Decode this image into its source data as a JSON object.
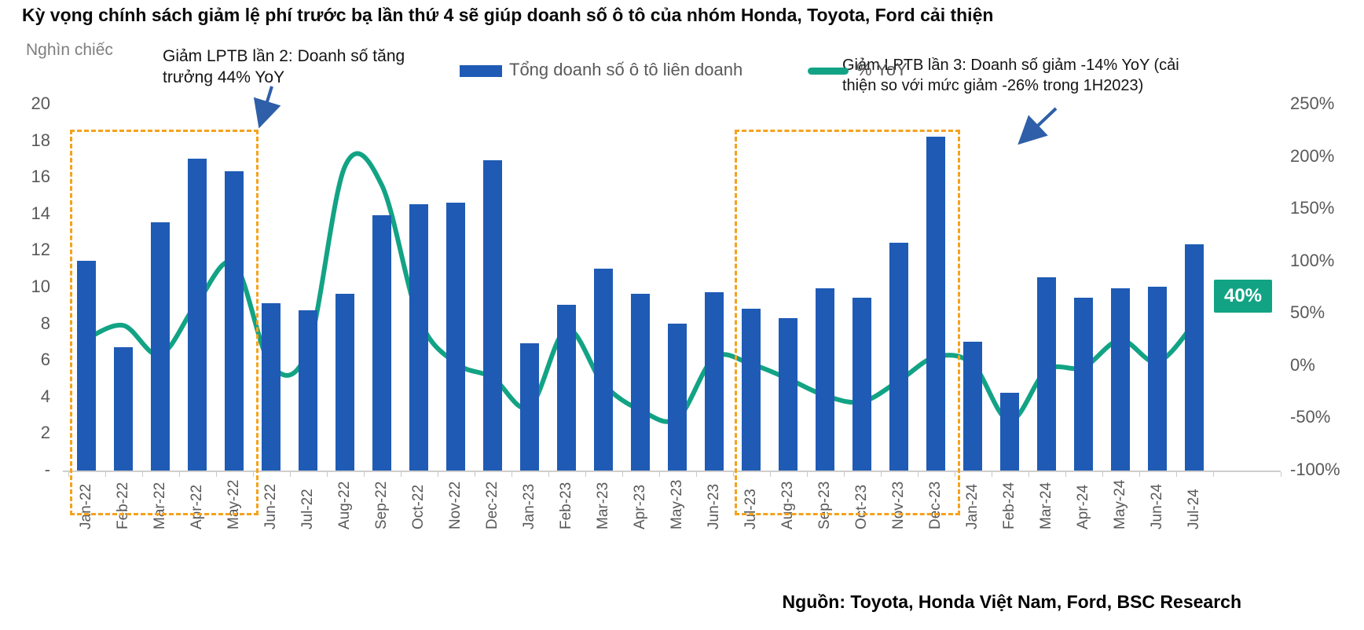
{
  "title": "Kỳ vọng chính sách giảm lệ phí trước bạ lần thứ 4 sẽ giúp doanh số ô tô của nhóm Honda, Toyota, Ford cải thiện",
  "axis_left_title": "Nghìn chiếc",
  "legend": {
    "bars_label": "Tổng doanh số ô tô liên doanh",
    "line_label": "% YoY"
  },
  "annotations": {
    "box1_label": "Giảm LPTB lần 2: Doanh số tăng trưởng 44% YoY",
    "box2_label": "Giảm LPTB lần 3: Doanh số giảm -14% YoY (cải thiện so với mức giảm -26% trong 1H2023)",
    "last_point_label": "40%"
  },
  "source": "Nguồn: Toyota, Honda Việt Nam, Ford, BSC Research",
  "colors": {
    "bar_blue": "#1f5bb5",
    "line_green": "#12a384",
    "badge_green": "#12a384",
    "box_orange": "#f5a21c",
    "arrow_blue": "#2e5fa8",
    "axis_text_gray": "#595959",
    "axis_line_gray": "#d0cece"
  },
  "chart_data": {
    "type": "bar",
    "subtype": "bar+line dual axis",
    "categories": [
      "Jan-22",
      "Feb-22",
      "Mar-22",
      "Apr-22",
      "May-22",
      "Jun-22",
      "Jul-22",
      "Aug-22",
      "Sep-22",
      "Oct-22",
      "Nov-22",
      "Dec-22",
      "Jan-23",
      "Feb-23",
      "Mar-23",
      "Apr-23",
      "May-23",
      "Jun-23",
      "Jul-23",
      "Aug-23",
      "Sep-23",
      "Oct-23",
      "Nov-23",
      "Dec-23",
      "Jan-24",
      "Feb-24",
      "Mar-24",
      "Apr-24",
      "May-24",
      "Jun-24",
      "Jul-24"
    ],
    "series": [
      {
        "name": "Tổng doanh số ô tô liên doanh",
        "type": "bar",
        "axis": "left",
        "unit": "nghìn chiếc",
        "values": [
          11.4,
          6.7,
          13.5,
          17.0,
          16.3,
          9.1,
          8.7,
          9.6,
          13.9,
          14.5,
          14.6,
          16.9,
          6.9,
          9.0,
          11.0,
          9.6,
          8.0,
          9.7,
          8.8,
          8.3,
          9.9,
          9.4,
          12.4,
          18.2,
          7.0,
          4.2,
          10.5,
          9.4,
          9.9,
          10.0,
          12.3
        ]
      },
      {
        "name": "% YoY",
        "type": "line",
        "axis": "right",
        "unit": "%",
        "values": [
          25,
          38,
          10,
          60,
          97,
          0,
          15,
          190,
          172,
          45,
          2,
          -12,
          -40,
          34,
          -18,
          -43,
          -51,
          7,
          1,
          -13,
          -29,
          -35,
          -15,
          8,
          1,
          -53,
          -5,
          -2,
          24,
          3,
          40
        ]
      }
    ],
    "left_axis": {
      "title": "Nghìn chiếc",
      "min": 0,
      "max": 20,
      "tick_labels": [
        "20",
        "18",
        "16",
        "14",
        "12",
        "10",
        "8",
        "6",
        "4",
        "2",
        "-"
      ]
    },
    "right_axis": {
      "min": -100,
      "max": 250,
      "tick_labels": [
        "250%",
        "200%",
        "150%",
        "100%",
        "50%",
        "0%",
        "-50%",
        "-100%"
      ]
    },
    "grid": false,
    "legend_position": "top-center",
    "highlight_boxes": [
      {
        "from": "Jan-22",
        "to": "May-22"
      },
      {
        "from": "Jul-23",
        "to": "Dec-23"
      }
    ],
    "data_label": {
      "category": "Jul-24",
      "series": "% YoY",
      "text": "40%"
    }
  }
}
